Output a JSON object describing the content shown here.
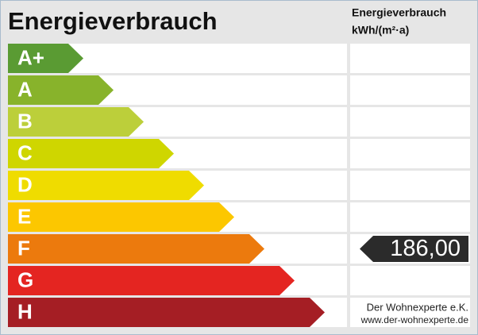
{
  "title": "Energieverbrauch",
  "unit_header": {
    "line1": "Energieverbrauch",
    "line2": "kWh/(m²·a)"
  },
  "classes": [
    {
      "label": "A+",
      "color": "#5a9b33"
    },
    {
      "label": "A",
      "color": "#88b32b"
    },
    {
      "label": "B",
      "color": "#bccf3a"
    },
    {
      "label": "C",
      "color": "#cfd600"
    },
    {
      "label": "D",
      "color": "#efdc00"
    },
    {
      "label": "E",
      "color": "#fcc700"
    },
    {
      "label": "F",
      "color": "#ec7a0d",
      "value": "186,00"
    },
    {
      "label": "G",
      "color": "#e42521"
    },
    {
      "label": "H",
      "color": "#a51e24"
    }
  ],
  "footer": {
    "line1": "Der Wohnexperte e.K.",
    "line2": "www.der-wohnexperte.de"
  }
}
